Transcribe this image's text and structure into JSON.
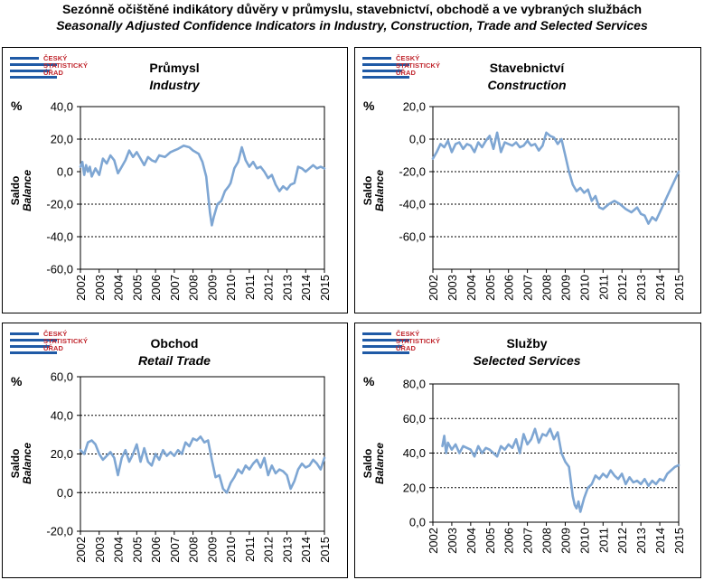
{
  "header": {
    "title": "Sezónně očištěné indikátory důvěry v průmyslu, stavebnictví, obchodě a ve vybraných službách",
    "subtitle": "Seasonally Adjusted Confidence Indicators in Industry, Construction, Trade and Selected Services"
  },
  "logo": {
    "line1": "ČESKÝ",
    "line2": "STATISTICKÝ",
    "line3": "ÚŘAD"
  },
  "colors": {
    "series": "#7ea6d3",
    "gridline": "#000000",
    "logo_blue": "#1f5aa6",
    "logo_red": "#c0262d"
  },
  "panels": [
    {
      "title": "Průmysl",
      "subtitle": "Industry",
      "unit": "%",
      "ylabel_cz": "Saldo",
      "ylabel_en": "Balance"
    },
    {
      "title": "Stavebnictví",
      "subtitle": "Construction",
      "unit": "%",
      "ylabel_cz": "Saldo",
      "ylabel_en": "Balance"
    },
    {
      "title": "Obchod",
      "subtitle": "Retail Trade",
      "unit": "%",
      "ylabel_cz": "Saldo",
      "ylabel_en": "Balance"
    },
    {
      "title": "Služby",
      "subtitle": "Selected Services",
      "unit": "%",
      "ylabel_cz": "Saldo",
      "ylabel_en": "Balance"
    }
  ],
  "chart_data": [
    {
      "type": "line",
      "title": "Průmysl",
      "subtitle": "Industry",
      "ylabel": "Saldo / Balance",
      "ylim": [
        -60,
        40
      ],
      "yticks": [
        -60,
        -40,
        -20,
        0,
        20,
        40
      ],
      "ytick_labels": [
        "-60,0",
        "-40,0",
        "-20,0",
        "0,0",
        "20,0",
        "40,0"
      ],
      "gridlines": [
        -40,
        -20,
        20
      ],
      "xlim": [
        2002,
        2015
      ],
      "xticks": [
        "2002",
        "2003",
        "2004",
        "2005",
        "2006",
        "2007",
        "2008",
        "2009",
        "2010",
        "2011",
        "2012",
        "2013",
        "2014",
        "2015"
      ],
      "series": [
        {
          "x": [
            2002.0,
            2002.1,
            2002.2,
            2002.3,
            2002.4,
            2002.5,
            2002.6,
            2002.8,
            2003.0,
            2003.2,
            2003.4,
            2003.6,
            2003.8,
            2004.0,
            2004.2,
            2004.4,
            2004.6,
            2004.8,
            2005.0,
            2005.2,
            2005.4,
            2005.6,
            2005.8,
            2006.0,
            2006.2,
            2006.5,
            2006.8,
            2007.0,
            2007.2,
            2007.5,
            2007.8,
            2008.0,
            2008.3,
            2008.5,
            2008.7,
            2008.9,
            2009.0,
            2009.1,
            2009.3,
            2009.5,
            2009.7,
            2009.9,
            2010.0,
            2010.2,
            2010.4,
            2010.6,
            2010.8,
            2011.0,
            2011.2,
            2011.4,
            2011.6,
            2011.8,
            2012.0,
            2012.2,
            2012.4,
            2012.6,
            2012.8,
            2013.0,
            2013.2,
            2013.4,
            2013.6,
            2013.8,
            2014.0,
            2014.2,
            2014.4,
            2014.6,
            2014.8,
            2015.0
          ],
          "y": [
            3,
            6,
            -2,
            4,
            0,
            3,
            -3,
            2,
            -2,
            8,
            5,
            10,
            7,
            -1,
            3,
            7,
            13,
            9,
            12,
            8,
            4,
            9,
            7,
            6,
            10,
            9,
            12,
            13,
            14,
            16,
            15,
            13,
            11,
            6,
            -3,
            -25,
            -33,
            -28,
            -20,
            -18,
            -12,
            -9,
            -7,
            2,
            6,
            15,
            7,
            3,
            6,
            2,
            3,
            0,
            -4,
            -2,
            -8,
            -12,
            -9,
            -11,
            -8,
            -7,
            3,
            2,
            0,
            2,
            4,
            2,
            3,
            2
          ]
        }
      ]
    },
    {
      "type": "line",
      "title": "Stavebnictví",
      "subtitle": "Construction",
      "ylabel": "Saldo / Balance",
      "ylim": [
        -80,
        20
      ],
      "yticks": [
        -60,
        -40,
        -20,
        0,
        20
      ],
      "ytick_labels": [
        "-60,0",
        "-40,0",
        "-20,0",
        "0,0",
        "20,0"
      ],
      "gridlines": [
        -60,
        -40,
        -20,
        0
      ],
      "xlim": [
        2002,
        2015
      ],
      "xticks": [
        "2002",
        "2003",
        "2004",
        "2005",
        "2006",
        "2007",
        "2008",
        "2009",
        "2010",
        "2011",
        "2012",
        "2013",
        "2014",
        "2015"
      ],
      "series": [
        {
          "x": [
            2002.0,
            2002.2,
            2002.4,
            2002.6,
            2002.8,
            2003.0,
            2003.2,
            2003.4,
            2003.6,
            2003.8,
            2004.0,
            2004.2,
            2004.4,
            2004.6,
            2004.8,
            2005.0,
            2005.2,
            2005.4,
            2005.6,
            2005.8,
            2006.0,
            2006.2,
            2006.4,
            2006.6,
            2006.8,
            2007.0,
            2007.2,
            2007.4,
            2007.6,
            2007.8,
            2008.0,
            2008.2,
            2008.4,
            2008.6,
            2008.8,
            2009.0,
            2009.2,
            2009.4,
            2009.6,
            2009.8,
            2010.0,
            2010.2,
            2010.4,
            2010.6,
            2010.8,
            2011.0,
            2011.3,
            2011.6,
            2011.9,
            2012.2,
            2012.5,
            2012.8,
            2013.0,
            2013.2,
            2013.4,
            2013.6,
            2013.8,
            2014.0,
            2014.2,
            2014.4,
            2014.6,
            2014.8,
            2015.0
          ],
          "y": [
            -12,
            -8,
            -3,
            -5,
            -1,
            -8,
            -3,
            -2,
            -6,
            -3,
            -4,
            -8,
            -2,
            -5,
            -1,
            2,
            -6,
            4,
            -8,
            -2,
            -3,
            -4,
            -2,
            -5,
            -4,
            -1,
            -4,
            -3,
            -7,
            -4,
            4,
            2,
            1,
            -3,
            0,
            -10,
            -20,
            -28,
            -32,
            -30,
            -33,
            -31,
            -38,
            -35,
            -42,
            -43,
            -40,
            -38,
            -40,
            -43,
            -45,
            -42,
            -46,
            -47,
            -52,
            -48,
            -50,
            -45,
            -40,
            -35,
            -30,
            -25,
            -20
          ]
        }
      ]
    },
    {
      "type": "line",
      "title": "Obchod",
      "subtitle": "Retail Trade",
      "ylabel": "Saldo / Balance",
      "ylim": [
        -20,
        60
      ],
      "yticks": [
        -20,
        0,
        20,
        40,
        60
      ],
      "ytick_labels": [
        "-20,0",
        "0,0",
        "20,0",
        "40,0",
        "60,0"
      ],
      "gridlines": [
        0,
        20,
        40
      ],
      "xlim": [
        2002,
        2015
      ],
      "xticks": [
        "2002",
        "2003",
        "2004",
        "2005",
        "2006",
        "2007",
        "2008",
        "2009",
        "2010",
        "2011",
        "2012",
        "2013",
        "2014",
        "2015"
      ],
      "series": [
        {
          "x": [
            2002.0,
            2002.2,
            2002.4,
            2002.6,
            2002.8,
            2003.0,
            2003.2,
            2003.4,
            2003.6,
            2003.8,
            2004.0,
            2004.2,
            2004.4,
            2004.6,
            2004.8,
            2005.0,
            2005.2,
            2005.4,
            2005.6,
            2005.8,
            2006.0,
            2006.2,
            2006.4,
            2006.6,
            2006.8,
            2007.0,
            2007.2,
            2007.4,
            2007.6,
            2007.8,
            2008.0,
            2008.2,
            2008.4,
            2008.6,
            2008.8,
            2009.0,
            2009.2,
            2009.4,
            2009.6,
            2009.8,
            2010.0,
            2010.2,
            2010.4,
            2010.6,
            2010.8,
            2011.0,
            2011.2,
            2011.4,
            2011.6,
            2011.8,
            2012.0,
            2012.2,
            2012.4,
            2012.6,
            2012.8,
            2013.0,
            2013.2,
            2013.4,
            2013.6,
            2013.8,
            2014.0,
            2014.2,
            2014.4,
            2014.6,
            2014.8,
            2015.0
          ],
          "y": [
            22,
            20,
            26,
            27,
            25,
            20,
            17,
            19,
            21,
            18,
            9,
            18,
            22,
            16,
            20,
            25,
            16,
            23,
            16,
            14,
            20,
            17,
            22,
            19,
            21,
            19,
            22,
            20,
            26,
            24,
            28,
            27,
            29,
            26,
            27,
            17,
            8,
            9,
            2,
            0,
            5,
            8,
            12,
            10,
            14,
            12,
            15,
            17,
            13,
            18,
            9,
            14,
            10,
            12,
            11,
            9,
            2,
            6,
            12,
            15,
            13,
            14,
            17,
            15,
            12,
            18
          ]
        }
      ]
    },
    {
      "type": "line",
      "title": "Služby",
      "subtitle": "Selected Services",
      "ylabel": "Saldo / Balance",
      "ylim": [
        0,
        80
      ],
      "yticks": [
        0,
        20,
        40,
        60,
        80
      ],
      "ytick_labels": [
        "0,0",
        "20,0",
        "40,0",
        "60,0",
        "80,0"
      ],
      "gridlines": [
        20,
        40,
        60
      ],
      "xlim": [
        2002,
        2015
      ],
      "xticks": [
        "2002",
        "2003",
        "2004",
        "2005",
        "2006",
        "2007",
        "2008",
        "2009",
        "2010",
        "2011",
        "2012",
        "2013",
        "2014",
        "2015"
      ],
      "series": [
        {
          "x": [
            2002.5,
            2002.6,
            2002.7,
            2002.8,
            2003.0,
            2003.2,
            2003.4,
            2003.6,
            2003.8,
            2004.0,
            2004.2,
            2004.4,
            2004.6,
            2004.8,
            2005.0,
            2005.2,
            2005.4,
            2005.6,
            2005.8,
            2006.0,
            2006.2,
            2006.4,
            2006.6,
            2006.8,
            2007.0,
            2007.2,
            2007.4,
            2007.6,
            2007.8,
            2008.0,
            2008.2,
            2008.4,
            2008.6,
            2008.8,
            2009.0,
            2009.2,
            2009.4,
            2009.5,
            2009.6,
            2009.7,
            2009.8,
            2010.0,
            2010.2,
            2010.4,
            2010.6,
            2010.8,
            2011.0,
            2011.2,
            2011.4,
            2011.6,
            2011.8,
            2012.0,
            2012.2,
            2012.4,
            2012.6,
            2012.8,
            2013.0,
            2013.2,
            2013.4,
            2013.6,
            2013.8,
            2014.0,
            2014.2,
            2014.4,
            2014.6,
            2014.8,
            2015.0
          ],
          "y": [
            44,
            50,
            40,
            46,
            42,
            45,
            40,
            44,
            43,
            42,
            38,
            44,
            40,
            43,
            42,
            40,
            38,
            44,
            42,
            45,
            43,
            48,
            40,
            51,
            45,
            48,
            54,
            46,
            51,
            50,
            54,
            48,
            52,
            40,
            35,
            32,
            15,
            10,
            8,
            12,
            6,
            14,
            20,
            22,
            27,
            25,
            28,
            26,
            30,
            27,
            25,
            28,
            22,
            26,
            23,
            24,
            22,
            25,
            21,
            24,
            22,
            25,
            24,
            28,
            30,
            32,
            33
          ]
        }
      ]
    }
  ]
}
